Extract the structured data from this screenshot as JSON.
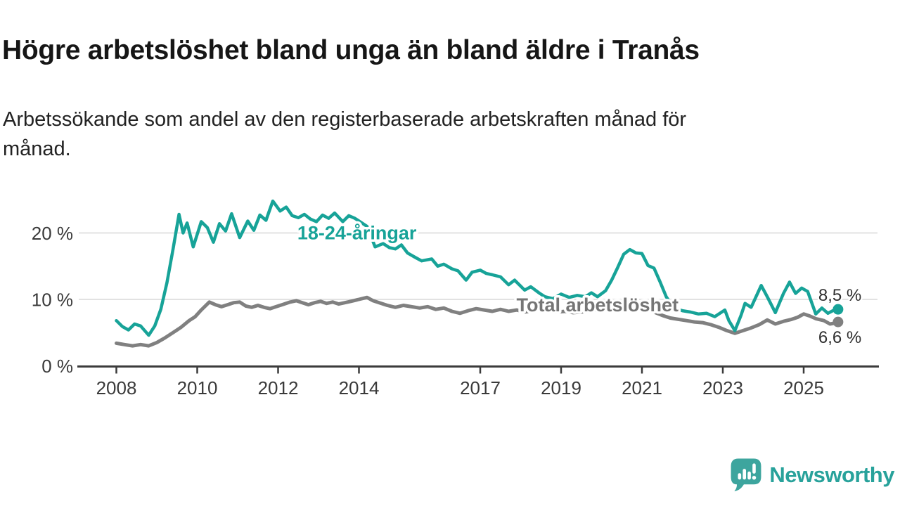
{
  "header": {
    "title": "Högre arbetslöshet bland unga än bland äldre i Tranås",
    "subtitle": "Arbetssökande som andel av den registerbaserade arbetskraften månad för månad."
  },
  "branding": {
    "logo_text": "Newsworthy",
    "logo_icon": "newsworthy-speech-bubble-bar-chart-icon",
    "brand_color": "#3da59e"
  },
  "colors": {
    "young_series": "#17a398",
    "total_series": "#808080",
    "total_label": "#757575",
    "gridline": "#d8d8d8",
    "axis": "#3b3b3b",
    "tick_text": "#3a3a3a"
  },
  "chart_data": {
    "type": "line",
    "x_unit": "decimal_year",
    "xlim": [
      2007.05,
      2026.85
    ],
    "ylim": [
      0,
      26
    ],
    "grid": "horizontal",
    "legend_position": "inline-labels",
    "xticks": [
      2008,
      2010,
      2012,
      2014,
      2017,
      2019,
      2021,
      2023,
      2025
    ],
    "yticks": [
      {
        "value": 0,
        "label": "0 %"
      },
      {
        "value": 10,
        "label": "10 %"
      },
      {
        "value": 20,
        "label": "20 %"
      }
    ],
    "series": [
      {
        "name": "Total arbetslöshet",
        "color": "#808080",
        "label": {
          "text": "Total arbetslöshet",
          "x": 2019.9,
          "y": 9.15,
          "color": "#757575"
        },
        "end_value": 6.6,
        "end_label": "6,6 %",
        "points": [
          [
            2008.0,
            3.4
          ],
          [
            2008.2,
            3.2
          ],
          [
            2008.4,
            3.0
          ],
          [
            2008.6,
            3.2
          ],
          [
            2008.8,
            3.0
          ],
          [
            2009.0,
            3.5
          ],
          [
            2009.2,
            4.2
          ],
          [
            2009.4,
            5.0
          ],
          [
            2009.6,
            5.8
          ],
          [
            2009.8,
            6.8
          ],
          [
            2009.95,
            7.4
          ],
          [
            2010.1,
            8.4
          ],
          [
            2010.3,
            9.6
          ],
          [
            2010.45,
            9.2
          ],
          [
            2010.6,
            8.9
          ],
          [
            2010.75,
            9.2
          ],
          [
            2010.9,
            9.5
          ],
          [
            2011.05,
            9.6
          ],
          [
            2011.2,
            9.0
          ],
          [
            2011.35,
            8.8
          ],
          [
            2011.5,
            9.1
          ],
          [
            2011.65,
            8.8
          ],
          [
            2011.8,
            8.6
          ],
          [
            2011.95,
            8.9
          ],
          [
            2012.1,
            9.2
          ],
          [
            2012.3,
            9.6
          ],
          [
            2012.45,
            9.8
          ],
          [
            2012.6,
            9.5
          ],
          [
            2012.75,
            9.2
          ],
          [
            2012.9,
            9.5
          ],
          [
            2013.05,
            9.7
          ],
          [
            2013.2,
            9.4
          ],
          [
            2013.35,
            9.6
          ],
          [
            2013.5,
            9.3
          ],
          [
            2013.65,
            9.5
          ],
          [
            2013.8,
            9.7
          ],
          [
            2014.0,
            10.0
          ],
          [
            2014.2,
            10.3
          ],
          [
            2014.35,
            9.8
          ],
          [
            2014.5,
            9.5
          ],
          [
            2014.7,
            9.1
          ],
          [
            2014.9,
            8.8
          ],
          [
            2015.1,
            9.1
          ],
          [
            2015.3,
            8.9
          ],
          [
            2015.5,
            8.7
          ],
          [
            2015.7,
            8.9
          ],
          [
            2015.9,
            8.5
          ],
          [
            2016.1,
            8.7
          ],
          [
            2016.3,
            8.2
          ],
          [
            2016.5,
            7.9
          ],
          [
            2016.7,
            8.3
          ],
          [
            2016.9,
            8.6
          ],
          [
            2017.1,
            8.4
          ],
          [
            2017.3,
            8.2
          ],
          [
            2017.5,
            8.5
          ],
          [
            2017.7,
            8.2
          ],
          [
            2017.9,
            8.4
          ],
          [
            2018.1,
            8.1
          ],
          [
            2018.3,
            8.3
          ],
          [
            2018.5,
            8.5
          ],
          [
            2018.7,
            8.3
          ],
          [
            2018.9,
            8.1
          ],
          [
            2019.1,
            8.2
          ],
          [
            2019.3,
            8.0
          ],
          [
            2019.5,
            8.1
          ],
          [
            2019.7,
            8.3
          ],
          [
            2019.9,
            8.4
          ],
          [
            2020.1,
            8.7
          ],
          [
            2020.3,
            9.1
          ],
          [
            2020.5,
            9.3
          ],
          [
            2020.7,
            9.1
          ],
          [
            2020.9,
            8.9
          ],
          [
            2021.1,
            8.5
          ],
          [
            2021.3,
            8.1
          ],
          [
            2021.5,
            7.6
          ],
          [
            2021.7,
            7.2
          ],
          [
            2021.9,
            7.0
          ],
          [
            2022.1,
            6.8
          ],
          [
            2022.3,
            6.6
          ],
          [
            2022.5,
            6.5
          ],
          [
            2022.7,
            6.2
          ],
          [
            2022.9,
            5.8
          ],
          [
            2023.1,
            5.3
          ],
          [
            2023.3,
            4.9
          ],
          [
            2023.5,
            5.3
          ],
          [
            2023.7,
            5.7
          ],
          [
            2023.9,
            6.2
          ],
          [
            2024.1,
            6.9
          ],
          [
            2024.3,
            6.3
          ],
          [
            2024.5,
            6.7
          ],
          [
            2024.7,
            7.0
          ],
          [
            2024.85,
            7.3
          ],
          [
            2025.0,
            7.8
          ],
          [
            2025.15,
            7.5
          ],
          [
            2025.3,
            7.1
          ],
          [
            2025.5,
            6.8
          ],
          [
            2025.65,
            6.3
          ],
          [
            2025.75,
            6.4
          ],
          [
            2025.85,
            6.6
          ]
        ]
      },
      {
        "name": "18-24-åringar",
        "color": "#17a398",
        "label": {
          "text": "18-24-åringar",
          "x": 2013.95,
          "y": 20.0,
          "color": "#17a398"
        },
        "end_value": 8.5,
        "end_label": "8,5 %",
        "points": [
          [
            2008.0,
            6.8
          ],
          [
            2008.15,
            5.9
          ],
          [
            2008.3,
            5.4
          ],
          [
            2008.45,
            6.3
          ],
          [
            2008.6,
            6.0
          ],
          [
            2008.8,
            4.6
          ],
          [
            2008.95,
            6.0
          ],
          [
            2009.1,
            8.5
          ],
          [
            2009.25,
            12.5
          ],
          [
            2009.4,
            17.5
          ],
          [
            2009.55,
            22.8
          ],
          [
            2009.65,
            20.0
          ],
          [
            2009.75,
            21.5
          ],
          [
            2009.9,
            17.9
          ],
          [
            2010.1,
            21.7
          ],
          [
            2010.25,
            20.8
          ],
          [
            2010.4,
            18.6
          ],
          [
            2010.55,
            21.4
          ],
          [
            2010.7,
            20.3
          ],
          [
            2010.85,
            22.9
          ],
          [
            2011.05,
            19.3
          ],
          [
            2011.25,
            21.8
          ],
          [
            2011.4,
            20.4
          ],
          [
            2011.55,
            22.7
          ],
          [
            2011.7,
            21.9
          ],
          [
            2011.87,
            24.8
          ],
          [
            2012.05,
            23.3
          ],
          [
            2012.2,
            23.9
          ],
          [
            2012.35,
            22.6
          ],
          [
            2012.5,
            22.3
          ],
          [
            2012.65,
            22.8
          ],
          [
            2012.8,
            22.1
          ],
          [
            2012.95,
            21.7
          ],
          [
            2013.1,
            22.7
          ],
          [
            2013.25,
            22.2
          ],
          [
            2013.4,
            23.0
          ],
          [
            2013.6,
            21.7
          ],
          [
            2013.75,
            22.6
          ],
          [
            2013.9,
            22.2
          ],
          [
            2014.05,
            21.6
          ],
          [
            2014.2,
            21.0
          ],
          [
            2014.4,
            17.9
          ],
          [
            2014.6,
            18.4
          ],
          [
            2014.75,
            17.8
          ],
          [
            2014.9,
            17.6
          ],
          [
            2015.05,
            18.2
          ],
          [
            2015.2,
            17.0
          ],
          [
            2015.4,
            16.3
          ],
          [
            2015.55,
            15.8
          ],
          [
            2015.8,
            16.1
          ],
          [
            2015.95,
            15.0
          ],
          [
            2016.1,
            15.3
          ],
          [
            2016.3,
            14.6
          ],
          [
            2016.45,
            14.3
          ],
          [
            2016.65,
            12.9
          ],
          [
            2016.8,
            14.1
          ],
          [
            2017.0,
            14.4
          ],
          [
            2017.15,
            13.9
          ],
          [
            2017.3,
            13.7
          ],
          [
            2017.5,
            13.4
          ],
          [
            2017.7,
            12.2
          ],
          [
            2017.85,
            12.9
          ],
          [
            2018.1,
            11.4
          ],
          [
            2018.25,
            11.9
          ],
          [
            2018.45,
            11.0
          ],
          [
            2018.6,
            10.4
          ],
          [
            2018.8,
            10.1
          ],
          [
            2019.0,
            10.8
          ],
          [
            2019.2,
            10.3
          ],
          [
            2019.4,
            10.6
          ],
          [
            2019.6,
            10.4
          ],
          [
            2019.75,
            11.0
          ],
          [
            2019.9,
            10.4
          ],
          [
            2020.1,
            11.3
          ],
          [
            2020.25,
            12.9
          ],
          [
            2020.4,
            14.8
          ],
          [
            2020.55,
            16.8
          ],
          [
            2020.7,
            17.5
          ],
          [
            2020.85,
            17.0
          ],
          [
            2021.0,
            16.9
          ],
          [
            2021.15,
            15.1
          ],
          [
            2021.3,
            14.7
          ],
          [
            2021.45,
            12.6
          ],
          [
            2021.6,
            10.4
          ],
          [
            2021.8,
            8.6
          ],
          [
            2022.0,
            8.3
          ],
          [
            2022.2,
            8.1
          ],
          [
            2022.4,
            7.8
          ],
          [
            2022.6,
            7.9
          ],
          [
            2022.8,
            7.4
          ],
          [
            2023.05,
            8.4
          ],
          [
            2023.15,
            6.8
          ],
          [
            2023.3,
            5.3
          ],
          [
            2023.45,
            7.6
          ],
          [
            2023.55,
            9.4
          ],
          [
            2023.7,
            8.8
          ],
          [
            2023.95,
            12.1
          ],
          [
            2024.1,
            10.4
          ],
          [
            2024.3,
            8.0
          ],
          [
            2024.5,
            10.9
          ],
          [
            2024.65,
            12.6
          ],
          [
            2024.8,
            10.9
          ],
          [
            2024.95,
            11.7
          ],
          [
            2025.1,
            11.2
          ],
          [
            2025.3,
            7.8
          ],
          [
            2025.45,
            8.7
          ],
          [
            2025.6,
            7.9
          ],
          [
            2025.72,
            8.3
          ],
          [
            2025.85,
            8.5
          ]
        ]
      }
    ]
  }
}
